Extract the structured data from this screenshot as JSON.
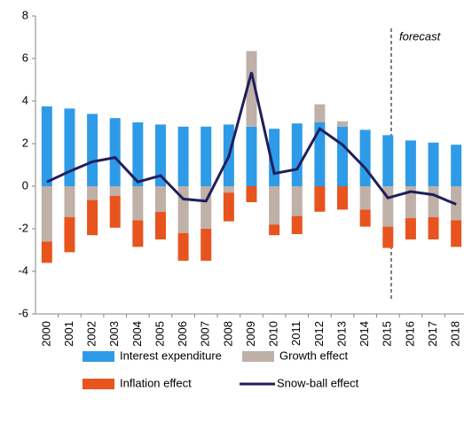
{
  "chart_data": {
    "type": "stacked-bar-line",
    "categories": [
      "2000",
      "2001",
      "2002",
      "2003",
      "2004",
      "2005",
      "2006",
      "2007",
      "2008",
      "2009",
      "2010",
      "2011",
      "2012",
      "2013",
      "2014",
      "2015",
      "2016",
      "2017",
      "2018"
    ],
    "series": [
      {
        "name": "Interest expenditure",
        "color": "#2e9be8",
        "kind": "bar",
        "values": [
          3.75,
          3.65,
          3.4,
          3.2,
          3.0,
          2.9,
          2.8,
          2.8,
          2.9,
          2.8,
          2.7,
          2.95,
          3.0,
          2.8,
          2.65,
          2.4,
          2.15,
          2.05,
          1.95
        ]
      },
      {
        "name": "Growth effect",
        "color": "#bfb0a8",
        "kind": "bar",
        "values": [
          -2.6,
          -1.45,
          -0.65,
          -0.45,
          -1.6,
          -1.2,
          -2.2,
          -2.0,
          -0.3,
          3.55,
          -1.8,
          -1.4,
          0.85,
          0.25,
          -1.1,
          -1.9,
          -1.5,
          -1.45,
          -1.6
        ]
      },
      {
        "name": "Inflation effect",
        "color": "#e8541e",
        "kind": "bar",
        "values": [
          -1.0,
          -1.65,
          -1.65,
          -1.5,
          -1.25,
          -1.3,
          -1.3,
          -1.5,
          -1.35,
          -0.75,
          -0.5,
          -0.85,
          -1.2,
          -1.1,
          -0.8,
          -1.0,
          -1.0,
          -1.05,
          -1.25
        ]
      },
      {
        "name": "Snow-ball effect",
        "color": "#1f1f5c",
        "kind": "line",
        "values": [
          0.2,
          0.7,
          1.15,
          1.35,
          0.2,
          0.5,
          -0.6,
          -0.7,
          1.4,
          5.35,
          0.6,
          0.8,
          2.7,
          1.95,
          0.85,
          -0.55,
          -0.25,
          -0.4,
          -0.85
        ]
      }
    ],
    "annotation": "forecast",
    "ylim": [
      -6,
      8
    ],
    "yticks": [
      -6,
      -4,
      -2,
      0,
      2,
      4,
      6,
      8
    ],
    "grid": false
  }
}
